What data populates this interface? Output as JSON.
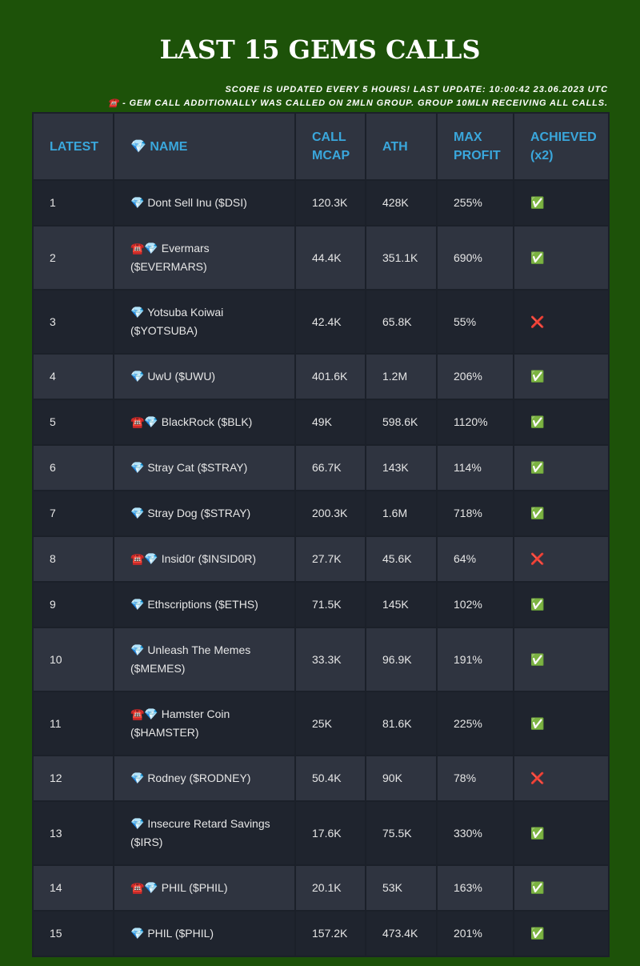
{
  "header": {
    "title": "LAST 15 GEMS CALLS",
    "notes": [
      "SCORE IS UPDATED EVERY 5 HOURS! LAST UPDATE: 10:00:42 23.06.2023 UTC",
      "☎️ - GEM CALL ADDITIONALLY WAS CALLED ON 2MLN GROUP. GROUP 10MLN RECEIVING ALL CALLS."
    ]
  },
  "table": {
    "columns": [
      "LATEST",
      "💎 NAME",
      "CALL MCAP",
      "ATH",
      "MAX PROFIT",
      "ACHIEVED (x2)"
    ],
    "rows": [
      [
        "1",
        "💎 Dont Sell Inu ($DSI)",
        "120.3K",
        "428K",
        "255%",
        "✅"
      ],
      [
        "2",
        "☎️💎 Evermars ($EVERMARS)",
        "44.4K",
        "351.1K",
        "690%",
        "✅"
      ],
      [
        "3",
        "💎 Yotsuba Koiwai ($YOTSUBA)",
        "42.4K",
        "65.8K",
        "55%",
        "❌"
      ],
      [
        "4",
        "💎 UwU ($UWU)",
        "401.6K",
        "1.2M",
        "206%",
        "✅"
      ],
      [
        "5",
        "☎️💎 BlackRock ($BLK)",
        "49K",
        "598.6K",
        "1120%",
        "✅"
      ],
      [
        "6",
        "💎 Stray Cat ($STRAY)",
        "66.7K",
        "143K",
        "114%",
        "✅"
      ],
      [
        "7",
        "💎 Stray Dog ($STRAY)",
        "200.3K",
        "1.6M",
        "718%",
        "✅"
      ],
      [
        "8",
        "☎️💎 Insid0r ($INSID0R)",
        "27.7K",
        "45.6K",
        "64%",
        "❌"
      ],
      [
        "9",
        "💎 Ethscriptions ($ETHS)",
        "71.5K",
        "145K",
        "102%",
        "✅"
      ],
      [
        "10",
        "💎 Unleash The Memes ($MEMES)",
        "33.3K",
        "96.9K",
        "191%",
        "✅"
      ],
      [
        "11",
        "☎️💎 Hamster Coin ($HAMSTER)",
        "25K",
        "81.6K",
        "225%",
        "✅"
      ],
      [
        "12",
        "💎 Rodney ($RODNEY)",
        "50.4K",
        "90K",
        "78%",
        "❌"
      ],
      [
        "13",
        "💎 Insecure Retard Savings ($IRS)",
        "17.6K",
        "75.5K",
        "330%",
        "✅"
      ],
      [
        "14",
        "☎️💎 PHIL ($PHIL)",
        "20.1K",
        "53K",
        "163%",
        "✅"
      ],
      [
        "15",
        "💎 PHIL ($PHIL)",
        "157.2K",
        "473.4K",
        "201%",
        "✅"
      ]
    ]
  }
}
